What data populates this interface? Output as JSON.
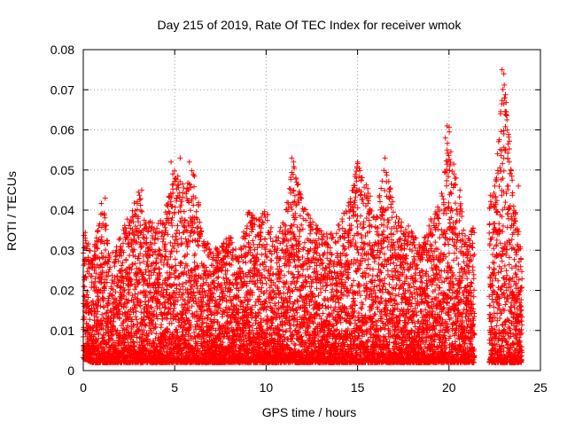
{
  "chart_data": {
    "type": "scatter",
    "title": "Day 215 of 2019, Rate Of TEC Index for receiver wmok",
    "xlabel": "GPS time / hours",
    "ylabel": "ROTI / TECUs",
    "xlim": [
      0,
      25
    ],
    "ylim": [
      0,
      0.08
    ],
    "xticks": [
      0,
      5,
      10,
      15,
      20,
      25
    ],
    "xtick_labels": [
      "0",
      "5",
      "10",
      "15",
      "20",
      "25"
    ],
    "yticks": [
      0,
      0.01,
      0.02,
      0.03,
      0.04,
      0.05,
      0.06,
      0.07,
      0.08
    ],
    "ytick_labels": [
      "0",
      "0.01",
      "0.02",
      "0.03",
      "0.04",
      "0.05",
      "0.06",
      "0.07",
      "0.08"
    ],
    "grid": true,
    "marker": "plus",
    "color": "#ff0000",
    "data_gap": [
      21.4,
      22.2
    ],
    "envelope": {
      "hours": [
        0,
        0.5,
        1,
        1.5,
        2,
        2.5,
        3,
        3.5,
        4,
        4.5,
        5,
        5.5,
        6,
        6.5,
        7,
        7.5,
        8,
        8.5,
        9,
        9.5,
        10,
        10.5,
        11,
        11.5,
        12,
        12.5,
        13,
        13.5,
        14,
        14.5,
        15,
        15.5,
        16,
        16.5,
        17,
        17.5,
        18,
        18.5,
        19,
        19.5,
        20,
        20.5,
        21,
        22.5,
        23,
        23.5,
        24
      ],
      "upper": [
        0.037,
        0.028,
        0.043,
        0.03,
        0.033,
        0.039,
        0.045,
        0.038,
        0.036,
        0.04,
        0.052,
        0.046,
        0.051,
        0.036,
        0.03,
        0.031,
        0.034,
        0.029,
        0.04,
        0.038,
        0.041,
        0.033,
        0.038,
        0.053,
        0.042,
        0.038,
        0.035,
        0.034,
        0.037,
        0.042,
        0.053,
        0.047,
        0.038,
        0.053,
        0.04,
        0.038,
        0.035,
        0.031,
        0.038,
        0.042,
        0.061,
        0.045,
        0.033,
        0.046,
        0.075,
        0.046,
        0.028
      ],
      "lower": [
        0.003,
        0.002,
        0.002,
        0.002,
        0.002,
        0.002,
        0.002,
        0.002,
        0.002,
        0.002,
        0.002,
        0.002,
        0.002,
        0.002,
        0.002,
        0.002,
        0.002,
        0.002,
        0.002,
        0.002,
        0.002,
        0.002,
        0.002,
        0.002,
        0.002,
        0.002,
        0.002,
        0.002,
        0.002,
        0.002,
        0.002,
        0.002,
        0.002,
        0.002,
        0.002,
        0.002,
        0.002,
        0.002,
        0.002,
        0.002,
        0.002,
        0.002,
        0.002,
        0.002,
        0.002,
        0.002,
        0.002
      ]
    },
    "notable_points": [
      {
        "x": 4.8,
        "y": 0.052
      },
      {
        "x": 4.9,
        "y": 0.049
      },
      {
        "x": 5.3,
        "y": 0.053
      },
      {
        "x": 5.8,
        "y": 0.052
      },
      {
        "x": 11.4,
        "y": 0.053
      },
      {
        "x": 11.5,
        "y": 0.052
      },
      {
        "x": 15.0,
        "y": 0.052
      },
      {
        "x": 16.5,
        "y": 0.053
      },
      {
        "x": 19.9,
        "y": 0.061
      },
      {
        "x": 19.8,
        "y": 0.058
      },
      {
        "x": 19.9,
        "y": 0.055
      },
      {
        "x": 22.9,
        "y": 0.075
      },
      {
        "x": 23.0,
        "y": 0.074
      },
      {
        "x": 23.0,
        "y": 0.0665
      },
      {
        "x": 23.0,
        "y": 0.059
      },
      {
        "x": 23.0,
        "y": 0.053
      },
      {
        "x": 1.2,
        "y": 0.043
      },
      {
        "x": 3.2,
        "y": 0.045
      },
      {
        "x": 20.6,
        "y": 0.045
      },
      {
        "x": 22.5,
        "y": 0.046
      },
      {
        "x": 23.8,
        "y": 0.046
      }
    ]
  }
}
